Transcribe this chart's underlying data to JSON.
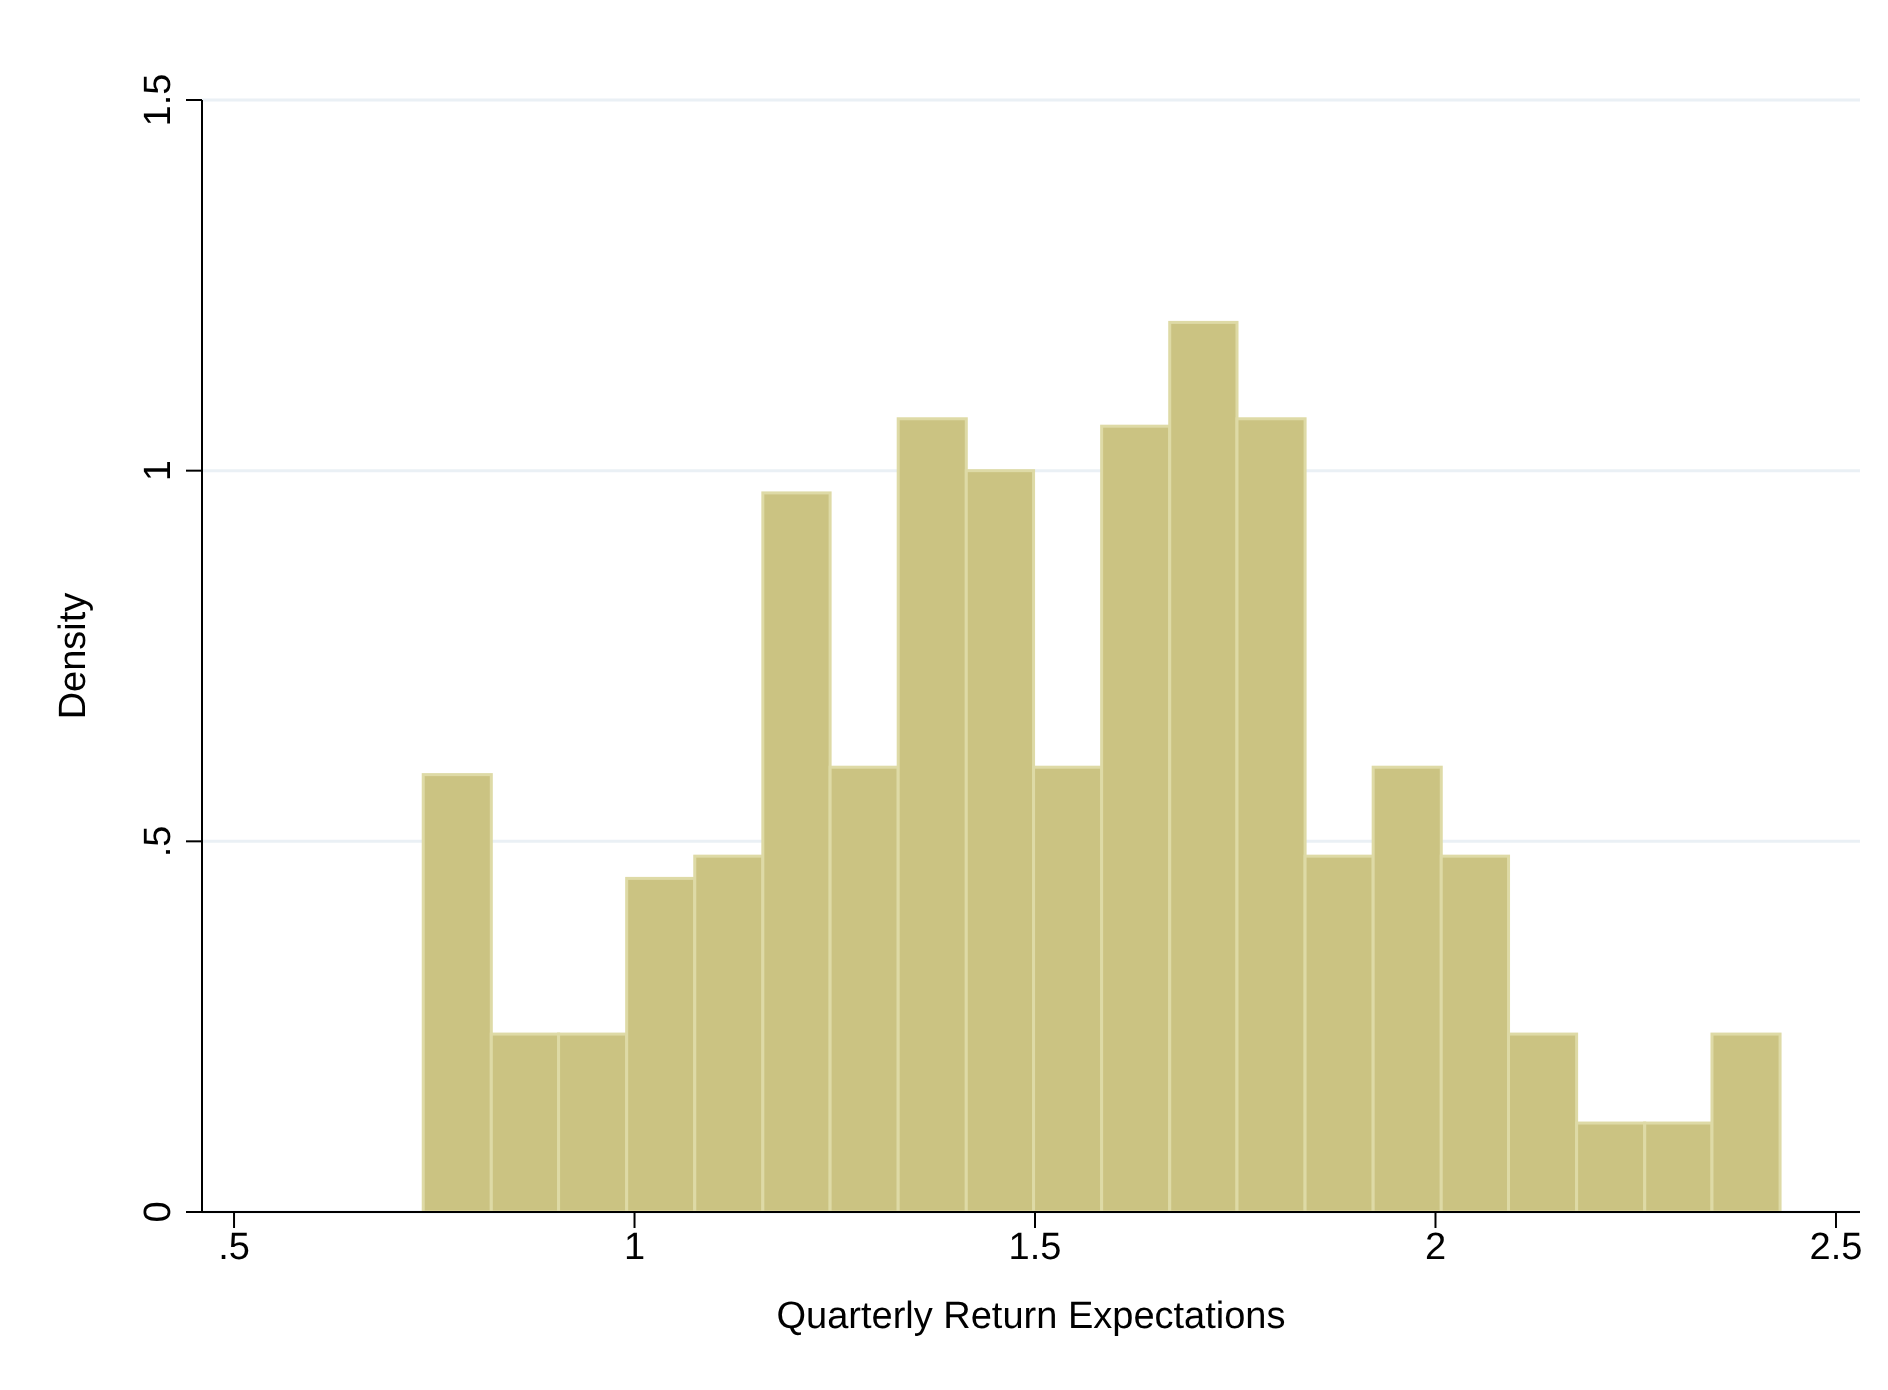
{
  "chart_data": {
    "type": "histogram",
    "xlabel": "Quarterly Return Expectations",
    "ylabel": "Density",
    "bins": [
      0.736,
      0.821,
      0.905,
      0.99,
      1.075,
      1.16,
      1.244,
      1.329,
      1.414,
      1.498,
      1.583,
      1.668,
      1.752,
      1.837,
      1.922,
      2.007,
      2.091,
      2.176,
      2.261,
      2.345,
      2.43
    ],
    "values": [
      0.59,
      0.24,
      0.24,
      0.45,
      0.48,
      0.97,
      0.6,
      1.07,
      1.0,
      0.6,
      1.06,
      1.2,
      1.07,
      0.48,
      0.6,
      0.48,
      0.24,
      0.12,
      0.12,
      0.24
    ],
    "color": "#cbc382",
    "xlim": [
      0.46,
      2.53
    ],
    "xticks": [
      {
        "value": 0.5,
        "label": ".5"
      },
      1,
      1.5,
      2,
      2.5
    ],
    "ylim": [
      0,
      1.5
    ],
    "yticks": [
      0,
      {
        "value": 0.5,
        "label": ".5"
      },
      1,
      1.5
    ],
    "grid": "y"
  }
}
